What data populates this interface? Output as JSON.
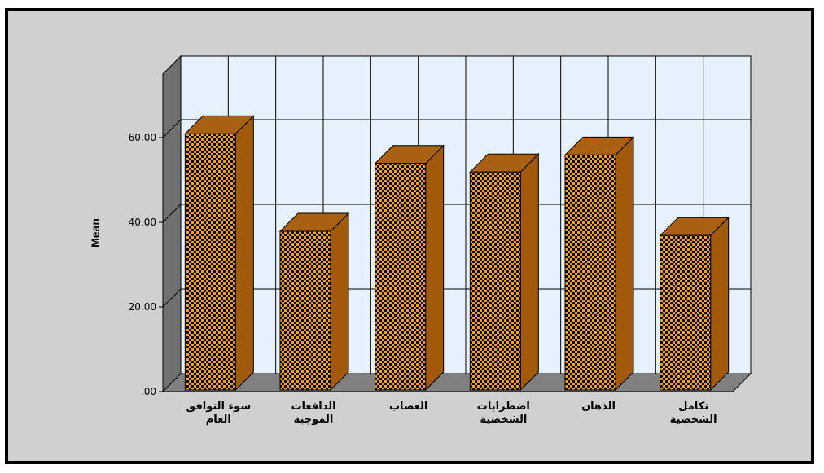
{
  "chart_data": {
    "type": "bar",
    "ylabel": "Mean",
    "ylim": [
      0,
      75
    ],
    "yticks": [
      ".00",
      "20.00",
      "40.00",
      "60.00"
    ],
    "grid": true,
    "categories": [
      [
        "سوء التوافق",
        "العام"
      ],
      [
        "الدافعات",
        "الموجبة"
      ],
      [
        "العصاب"
      ],
      [
        "اضطرابات",
        "الشخصية"
      ],
      [
        "الذهان"
      ],
      [
        "تكامل",
        "الشخصية"
      ]
    ],
    "values": [
      60.5,
      37.5,
      53.5,
      51.5,
      55.5,
      36.5
    ],
    "colors": {
      "bar_front_a": "#f7a020",
      "bar_front_b": "#000000",
      "bar_side": "#a05a0a",
      "bar_top": "#a86012",
      "plot_back": "#e6f1fb",
      "side_wall": "#707070",
      "floor": "#808080"
    }
  }
}
